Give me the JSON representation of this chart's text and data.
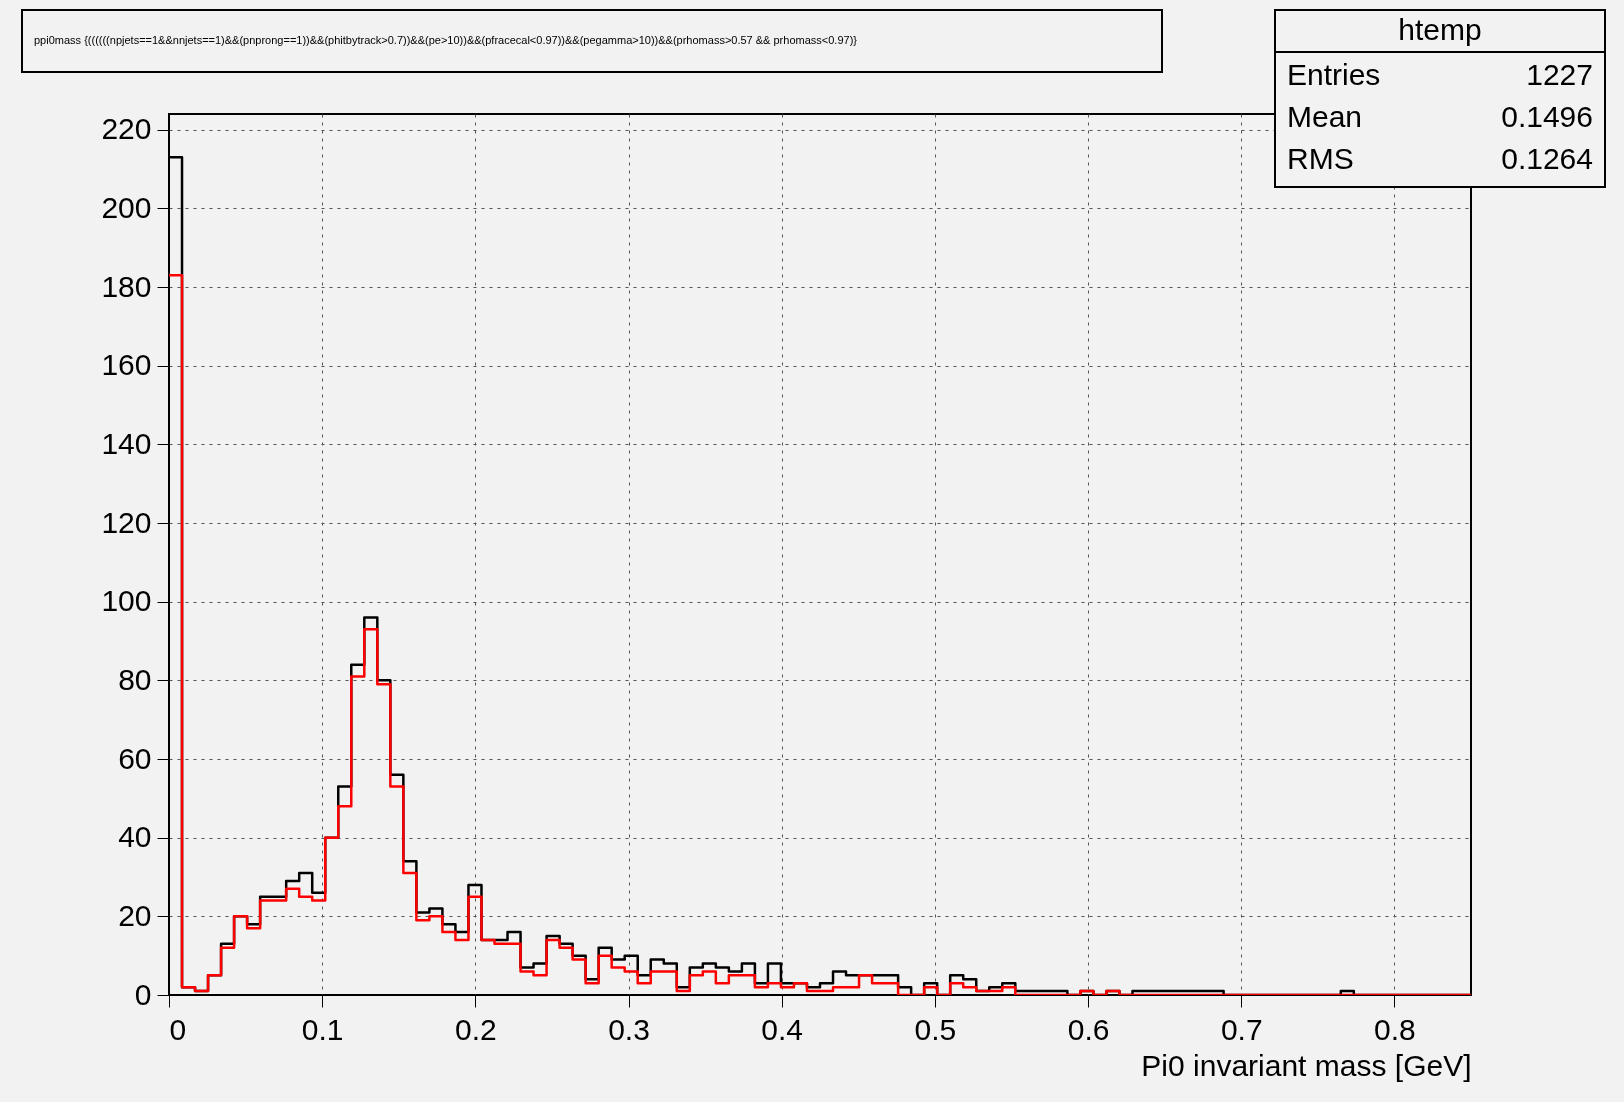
{
  "chart_data": {
    "type": "histogram",
    "title": "ppi0mass {((((((npjets==1&&nnjets==1)&&(pnprong==1))&&(phitbytrack>0.7))&&(pe>10))&&(pfracecal<0.97))&&(pegamma>10))&&(prhomass>0.57 && prhomass<0.97)}",
    "xlabel": "Pi0 invariant mass [GeV]",
    "annotations": [
      "htemp",
      "Entries",
      "1227",
      "Mean",
      "0.1496",
      "RMS",
      "0.1264"
    ],
    "bins": [
      0,
      0.0085,
      0.017,
      0.0255,
      0.034,
      0.0425,
      0.051,
      0.0595,
      0.068,
      0.0765,
      0.085,
      0.0935,
      0.102,
      0.1105,
      0.119,
      0.1275,
      0.136,
      0.1445,
      0.153,
      0.1615,
      0.17,
      0.1785,
      0.187,
      0.1955,
      0.204,
      0.2125,
      0.221,
      0.2295,
      0.238,
      0.2465,
      0.255,
      0.2635,
      0.272,
      0.2805,
      0.289,
      0.2975,
      0.306,
      0.3145,
      0.323,
      0.3315,
      0.34,
      0.3485,
      0.357,
      0.3655,
      0.374,
      0.3825,
      0.391,
      0.3995,
      0.408,
      0.4165,
      0.425,
      0.4335,
      0.442,
      0.4505,
      0.459,
      0.4675,
      0.476,
      0.4845,
      0.493,
      0.5015,
      0.51,
      0.5185,
      0.527,
      0.5355,
      0.544,
      0.5525,
      0.561,
      0.5695,
      0.578,
      0.5865,
      0.595,
      0.6035,
      0.612,
      0.6205,
      0.629,
      0.6375,
      0.646,
      0.6545,
      0.663,
      0.6715,
      0.68,
      0.6885,
      0.697,
      0.7055,
      0.714,
      0.7225,
      0.731,
      0.7395,
      0.748,
      0.7565,
      0.765,
      0.7735,
      0.782,
      0.7905,
      0.799,
      0.8075,
      0.816,
      0.8245,
      0.833,
      0.8415,
      0.85
    ],
    "series": [
      {
        "color": "#000000",
        "values": [
          213,
          2,
          1,
          5,
          13,
          20,
          18,
          25,
          25,
          29,
          31,
          26,
          40,
          53,
          84,
          96,
          80,
          56,
          34,
          21,
          22,
          18,
          16,
          28,
          14,
          14,
          16,
          7,
          8,
          15,
          13,
          10,
          4,
          12,
          9,
          10,
          5,
          9,
          8,
          2,
          7,
          8,
          7,
          6,
          8,
          3,
          8,
          3,
          3,
          2,
          3,
          6,
          5,
          5,
          5,
          5,
          2,
          0,
          3,
          0,
          5,
          4,
          1,
          2,
          3,
          1,
          1,
          1,
          1,
          0,
          1,
          0,
          1,
          0,
          1,
          1,
          1,
          1,
          1,
          1,
          1,
          0,
          0,
          0,
          0,
          0,
          0,
          0,
          0,
          0,
          1,
          0,
          0,
          0,
          0,
          0,
          0,
          0,
          0,
          0
        ]
      },
      {
        "color": "#ff0000",
        "values": [
          183,
          2,
          1,
          5,
          12,
          20,
          17,
          24,
          24,
          27,
          25,
          24,
          40,
          48,
          81,
          93,
          79,
          53,
          31,
          19,
          20,
          16,
          14,
          25,
          14,
          13,
          13,
          6,
          5,
          14,
          12,
          9,
          3,
          10,
          7,
          6,
          3,
          6,
          6,
          1,
          5,
          6,
          3,
          5,
          5,
          2,
          3,
          2,
          3,
          1,
          1,
          2,
          2,
          5,
          3,
          3,
          0,
          0,
          2,
          0,
          3,
          2,
          1,
          1,
          2,
          0,
          0,
          0,
          0,
          0,
          1,
          0,
          1,
          0,
          0,
          0,
          0,
          0,
          0,
          0,
          0,
          0,
          0,
          0,
          0,
          0,
          0,
          0,
          0,
          0,
          0,
          0,
          0,
          0,
          0,
          0,
          0,
          0,
          0,
          0
        ]
      }
    ],
    "xlim": [
      0,
      0.85
    ],
    "ylim": [
      0,
      224
    ],
    "xticks": [
      0,
      0.1,
      0.2,
      0.3,
      0.4,
      0.5,
      0.6,
      0.7,
      0.8
    ],
    "yticks": [
      0,
      20,
      40,
      60,
      80,
      100,
      120,
      140,
      160,
      180,
      200,
      220
    ],
    "grid": true,
    "legend": false
  }
}
